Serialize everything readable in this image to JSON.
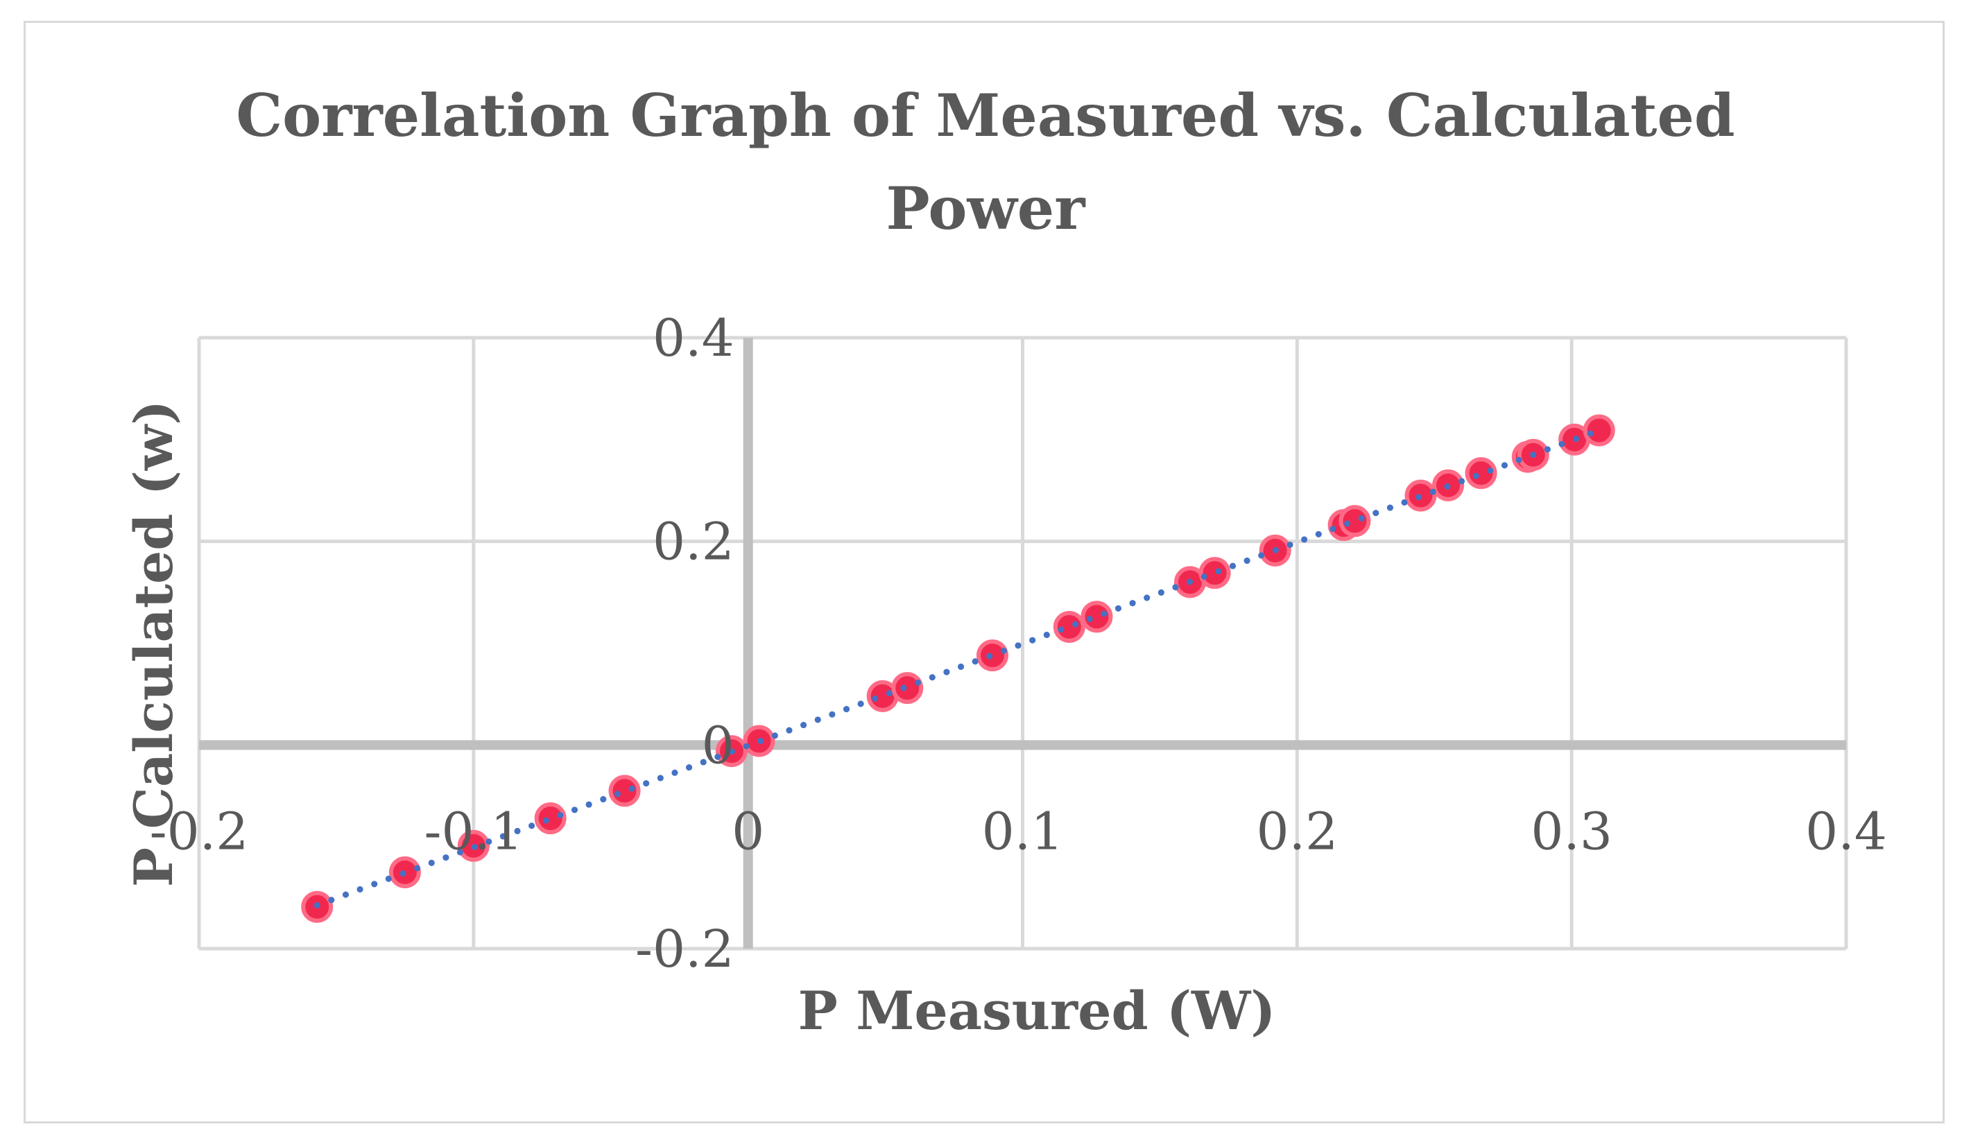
{
  "chart_data": {
    "type": "scatter",
    "title": "Correlation Graph of Measured vs. Calculated Power",
    "title_lines": [
      "Correlation Graph of Measured vs. Calculated",
      "Power"
    ],
    "xlabel": "P Measured (W)",
    "ylabel": "P Calculated  (w)",
    "xlim": [
      -0.2,
      0.4
    ],
    "ylim": [
      -0.2,
      0.4
    ],
    "x_ticks": [
      -0.2,
      -0.1,
      0,
      0.1,
      0.2,
      0.3,
      0.4
    ],
    "y_ticks": [
      -0.2,
      0,
      0.2,
      0.4
    ],
    "x_tick_labels": [
      "-0.2",
      "-0.1",
      "0",
      "0.1",
      "0.2",
      "0.3",
      "0.4"
    ],
    "y_tick_labels": [
      "-0.2",
      "0",
      "0.2",
      "0.4"
    ],
    "grid": true,
    "trendline": {
      "style": "dotted",
      "type": "linear"
    },
    "series": [
      {
        "name": "P Calculated",
        "x": [
          -0.157,
          -0.125,
          -0.1,
          -0.072,
          -0.045,
          -0.006,
          0.004,
          0.049,
          0.058,
          0.089,
          0.117,
          0.127,
          0.161,
          0.17,
          0.192,
          0.217,
          0.221,
          0.245,
          0.255,
          0.267,
          0.284,
          0.286,
          0.301,
          0.31
        ],
        "y": [
          -0.159,
          -0.125,
          -0.099,
          -0.072,
          -0.045,
          -0.006,
          0.004,
          0.048,
          0.056,
          0.088,
          0.116,
          0.126,
          0.16,
          0.169,
          0.191,
          0.216,
          0.22,
          0.245,
          0.255,
          0.267,
          0.283,
          0.285,
          0.3,
          0.309
        ]
      }
    ],
    "colors": {
      "marker": "#f0284f",
      "marker_edge": "#ff6b86",
      "trendline": "#4472c4",
      "grid": "#d9d9d9",
      "axis": "#bfbfbf",
      "text": "#595959"
    }
  }
}
